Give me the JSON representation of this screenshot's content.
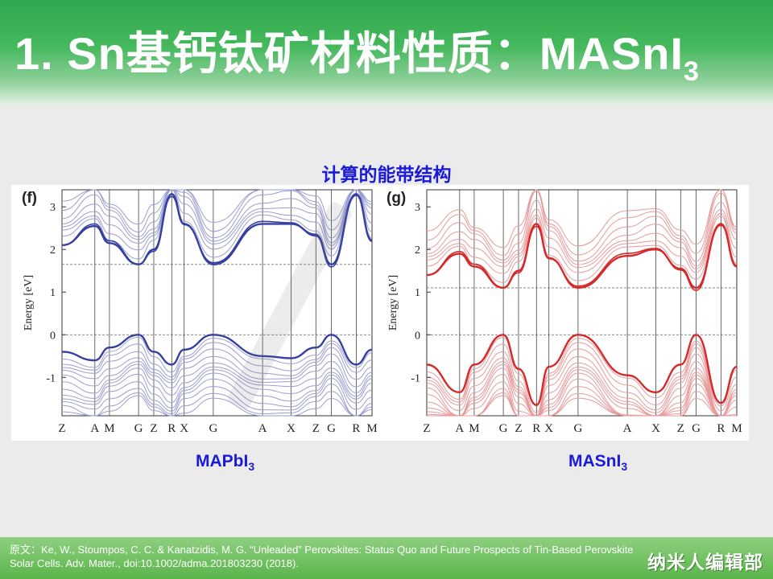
{
  "title": {
    "main": "1. Sn基钙钛矿材料性质：MASnI",
    "subscript": "3"
  },
  "subtitle": "计算的能带结构",
  "captions": {
    "left": {
      "main": "MAPbI",
      "sub": "3"
    },
    "right": {
      "main": "MASnI",
      "sub": "3"
    }
  },
  "footer": {
    "reference": "原文：Ke, W., Stoumpos, C. C. & Kanatzidis, M. G. “Unleaded” Perovskites: Status Quo and Future Prospects of Tin-Based Perovskite Solar Cells. Adv. Mater., doi:10.1002/adma.201803230  (2018).",
    "brand": "纳米人编辑部"
  },
  "colors": {
    "header": "#3aae55",
    "title": "#ffffff",
    "subtitle": "#1a1ad8",
    "mapbi3_band": "#3540a0",
    "mapbi3_thin": "#9a9ed2",
    "masni3_band": "#d42a2a",
    "masni3_thin": "#e79a9a"
  },
  "chart_data": [
    {
      "type": "line",
      "panel_label": "(f)",
      "title": "",
      "ylabel": "Energy [eV]",
      "xlabel": "",
      "x_ticks": [
        "Z",
        "A",
        "M",
        "G",
        "Z",
        "R",
        "X",
        "G",
        "A",
        "X",
        "Z",
        "G",
        "R",
        "M"
      ],
      "y_ticks": [
        -1,
        0,
        1,
        2,
        3
      ],
      "ylim": [
        -1.9,
        3.4
      ],
      "dashed_levels": [
        0,
        1.65
      ],
      "series": [
        {
          "role": "highlighted-conduction",
          "values": [
            2.1,
            2.55,
            2.15,
            1.65,
            2.0,
            3.3,
            2.6,
            1.65,
            2.6,
            2.6,
            2.35,
            1.65,
            3.3,
            2.2
          ]
        },
        {
          "role": "highlighted-valence",
          "values": [
            -0.4,
            -0.6,
            -0.3,
            0.0,
            -0.4,
            -0.7,
            -0.35,
            0.0,
            -0.5,
            -0.55,
            -0.3,
            0.0,
            -0.7,
            -0.35
          ]
        }
      ]
    },
    {
      "type": "line",
      "panel_label": "(g)",
      "title": "",
      "ylabel": "Energy [eV]",
      "xlabel": "",
      "x_ticks": [
        "Z",
        "A",
        "M",
        "G",
        "Z",
        "R",
        "X",
        "G",
        "A",
        "X",
        "Z",
        "G",
        "R",
        "M"
      ],
      "y_ticks": [
        -1,
        0,
        1,
        2,
        3
      ],
      "ylim": [
        -1.9,
        3.4
      ],
      "dashed_levels": [
        0,
        1.1
      ],
      "series": [
        {
          "role": "highlighted-conduction",
          "values": [
            1.4,
            1.9,
            1.6,
            1.1,
            1.5,
            2.6,
            1.8,
            1.1,
            1.85,
            2.0,
            1.55,
            1.1,
            2.6,
            1.6
          ]
        },
        {
          "role": "highlighted-valence",
          "values": [
            -0.7,
            -1.35,
            -0.7,
            0.0,
            -0.8,
            -1.65,
            -0.75,
            0.0,
            -0.95,
            -1.35,
            -0.7,
            0.0,
            -1.6,
            -0.75
          ]
        }
      ]
    }
  ]
}
